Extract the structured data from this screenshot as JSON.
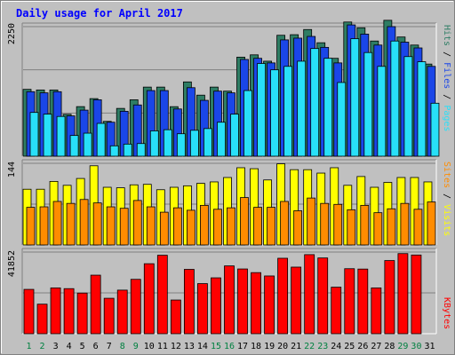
{
  "chart_data": [
    {
      "type": "bar",
      "panel": "pages-files-hits",
      "ymax_label": "2250",
      "ymax": 2250,
      "gridlines": 3,
      "series": [
        {
          "name": "Hits",
          "color": "#2e7d64",
          "values": [
            1161,
            1150,
            1150,
            728,
            861,
            1000,
            605,
            830,
            980,
            1200,
            1200,
            860,
            1290,
            1060,
            1200,
            1130,
            1720,
            1760,
            1650,
            2100,
            2110,
            2200,
            1970,
            1700,
            2330,
            2230,
            2000,
            2360,
            2070,
            1930,
            1600
          ]
        },
        {
          "name": "Files",
          "color": "#1a46e8",
          "values": [
            1120,
            1100,
            1120,
            700,
            800,
            980,
            590,
            780,
            890,
            1140,
            1140,
            820,
            1190,
            970,
            1130,
            1100,
            1680,
            1700,
            1620,
            2020,
            2050,
            2080,
            1890,
            1620,
            2280,
            2120,
            1930,
            2250,
            1980,
            1880,
            1560
          ]
        },
        {
          "name": "Pages",
          "color": "#28e0f8",
          "values": [
            760,
            730,
            690,
            360,
            400,
            570,
            180,
            210,
            220,
            440,
            460,
            390,
            450,
            480,
            590,
            730,
            1140,
            1610,
            1500,
            1560,
            1650,
            1870,
            1700,
            1280,
            2040,
            1800,
            1560,
            2000,
            1730,
            1640,
            920
          ]
        }
      ],
      "legend_label": {
        "pages": "Pages",
        "sep1": " / ",
        "files": "Files",
        "sep2": " / ",
        "hits": "Hits"
      }
    },
    {
      "type": "bar",
      "panel": "visits-sites",
      "ymax_label": "144",
      "ymax": 144,
      "gridlines": 2,
      "series": [
        {
          "name": "Visits",
          "color": "#ffff00",
          "values": [
            114,
            114,
            130,
            122,
            136,
            162,
            118,
            117,
            123,
            124,
            113,
            118,
            121,
            126,
            129,
            138,
            158,
            156,
            133,
            166,
            154,
            154,
            147,
            158,
            122,
            140,
            118,
            128,
            138,
            138,
            129
          ]
        },
        {
          "name": "Sites",
          "color": "#ff8c00",
          "values": [
            77,
            78,
            89,
            85,
            93,
            86,
            78,
            75,
            91,
            78,
            67,
            76,
            71,
            81,
            73,
            76,
            97,
            77,
            77,
            89,
            70,
            96,
            85,
            83,
            72,
            81,
            66,
            74,
            85,
            73,
            88
          ]
        }
      ],
      "legend_label": {
        "sites": "Sites",
        "sep": " / ",
        "visits": "Visits"
      }
    },
    {
      "type": "bar",
      "panel": "kbytes",
      "ymax_label": "41852",
      "ymax": 41852,
      "gridlines": 2,
      "series": [
        {
          "name": "KBytes",
          "color": "#ff0000",
          "values": [
            24990,
            16650,
            25830,
            25410,
            22910,
            33010,
            19980,
            24570,
            30650,
            39460,
            44240,
            18990,
            36280,
            28240,
            31500,
            38230,
            36500,
            34440,
            32550,
            42540,
            37540,
            44580,
            42710,
            26240,
            36650,
            36440,
            25830,
            41250,
            45170,
            44370,
            0
          ]
        }
      ],
      "legend_label": {
        "kbytes": "KBytes"
      }
    }
  ],
  "title": "Daily usage for April 2017",
  "days": [
    "1",
    "2",
    "3",
    "4",
    "5",
    "6",
    "7",
    "8",
    "9",
    "10",
    "11",
    "12",
    "13",
    "14",
    "15",
    "16",
    "17",
    "18",
    "19",
    "20",
    "21",
    "22",
    "23",
    "24",
    "25",
    "26",
    "27",
    "28",
    "29",
    "30",
    "31"
  ],
  "weekend_days": [
    "1",
    "2",
    "8",
    "9",
    "15",
    "16",
    "22",
    "23",
    "29",
    "30"
  ],
  "colors": {
    "background": "#c0c0c0",
    "title": "#0000ff",
    "weekday": "#000000",
    "weekend": "#008040",
    "grid": "#808080"
  }
}
